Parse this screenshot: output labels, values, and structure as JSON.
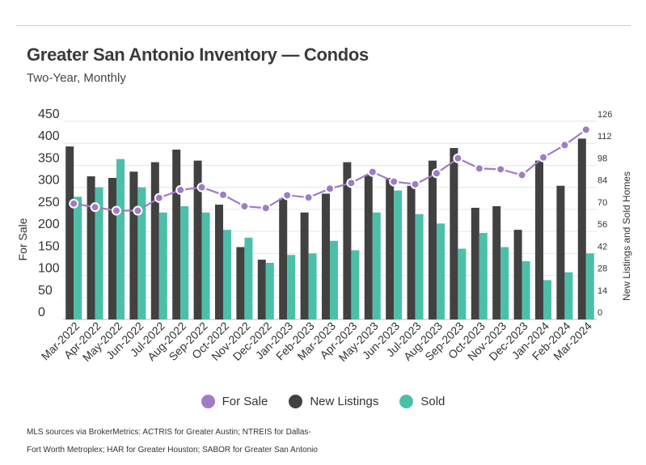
{
  "page": {
    "title": "Greater San Antonio Inventory — Condos",
    "subtitle": "Two-Year, Monthly",
    "source": "MLS sources via BrokerMetrics: ACTRIS for Greater Austin; NTREIS for Dallas-Fort Worth Metroplex; HAR for Greater Houston; SABOR for Greater San Antonio"
  },
  "chart_data": {
    "type": "bar",
    "categories": [
      "Mar-2022",
      "Apr-2022",
      "May-2022",
      "Jun-2022",
      "Jul-2022",
      "Aug-2022",
      "Sep-2022",
      "Oct-2022",
      "Nov-2022",
      "Dec-2022",
      "Jan-2023",
      "Feb-2023",
      "Mar-2023",
      "Apr-2023",
      "May-2023",
      "Jun-2023",
      "Jul-2023",
      "Aug-2023",
      "Sep-2023",
      "Oct-2023",
      "Nov-2023",
      "Dec-2023",
      "Jan-2024",
      "Feb-2024",
      "Mar-2024"
    ],
    "series": [
      {
        "name": "For Sale",
        "type": "line",
        "axis": "left",
        "color": "#a07cc5",
        "values": [
          263,
          255,
          247,
          247,
          276,
          294,
          300,
          283,
          257,
          253,
          282,
          277,
          297,
          310,
          335,
          313,
          307,
          332,
          366,
          343,
          341,
          328,
          368,
          396,
          431
        ]
      },
      {
        "name": "New Listings",
        "type": "bar",
        "axis": "right",
        "color": "#414141",
        "values": [
          110,
          91,
          90,
          94,
          100,
          108,
          101,
          73,
          46,
          38,
          77,
          68,
          80,
          100,
          92,
          90,
          85,
          101,
          109,
          71,
          72,
          57,
          101,
          85,
          115
        ]
      },
      {
        "name": "Sold",
        "type": "bar",
        "axis": "right",
        "color": "#4dbfa9",
        "values": [
          78,
          84,
          102,
          84,
          68,
          72,
          68,
          57,
          52,
          36,
          41,
          42,
          50,
          44,
          68,
          82,
          67,
          61,
          45,
          55,
          46,
          37,
          25,
          30,
          42
        ]
      }
    ],
    "ylabel": "For Sale",
    "ylabel_right": "New Listings and Sold Homes",
    "ylim": [
      0,
      450
    ],
    "yticks": [
      0,
      50,
      100,
      150,
      200,
      250,
      300,
      350,
      400,
      450
    ],
    "ylim_right": [
      0,
      126
    ],
    "yticks_right": [
      0,
      14,
      28,
      42,
      56,
      70,
      84,
      98,
      112,
      126
    ],
    "grid": true,
    "legend": "bottom-center"
  }
}
